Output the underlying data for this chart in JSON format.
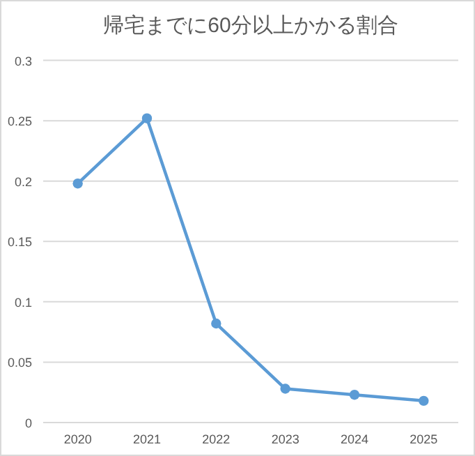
{
  "chart_data": {
    "type": "line",
    "title": "帰宅までに60分以上かかる割合",
    "categories": [
      "2020",
      "2021",
      "2022",
      "2023",
      "2024",
      "2025"
    ],
    "series": [
      {
        "color": "#5b9bd5",
        "values": [
          0.198,
          0.252,
          0.082,
          0.028,
          0.023,
          0.018
        ]
      }
    ],
    "ylim": [
      0,
      0.3
    ],
    "yticks": [
      0,
      0.05,
      0.1,
      0.15,
      0.2,
      0.25,
      0.3
    ],
    "grid": "y",
    "marker": "circle",
    "line_style": "solid"
  }
}
